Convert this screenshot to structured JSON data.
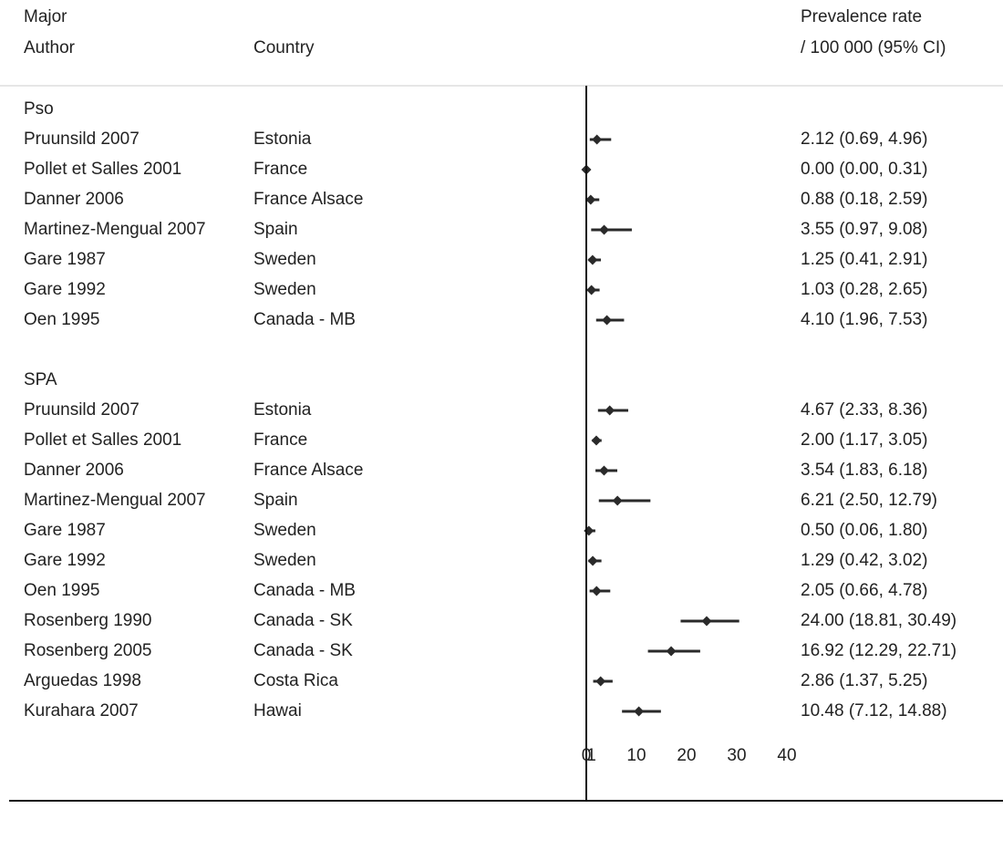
{
  "header": {
    "author_label_1": "Major",
    "author_label_2": "Author",
    "country_label": "Country",
    "rate_label_1": "Prevalence rate",
    "rate_label_2": "/ 100 000 (95% CI)"
  },
  "colors": {
    "text": "#222222",
    "marker": "#2a2a2a",
    "axis": "#111111",
    "divider": "#cccccc"
  },
  "chart_data": {
    "type": "forest",
    "xlabel": "",
    "xlim": [
      0,
      40
    ],
    "x_ticks": [
      "0",
      "1",
      "10",
      "20",
      "30",
      "40"
    ],
    "groups": [
      {
        "name": "Pso",
        "studies": [
          {
            "author": "Pruunsild 2007",
            "country": "Estonia",
            "estimate": 2.12,
            "low": 0.69,
            "high": 4.96,
            "label": "2.12 (0.69, 4.96)"
          },
          {
            "author": "Pollet et Salles 2001",
            "country": "France",
            "estimate": 0.0,
            "low": 0.0,
            "high": 0.31,
            "label": "0.00 (0.00, 0.31)"
          },
          {
            "author": "Danner 2006",
            "country": "France Alsace",
            "estimate": 0.88,
            "low": 0.18,
            "high": 2.59,
            "label": "0.88 (0.18, 2.59)"
          },
          {
            "author": "Martinez-Mengual 2007",
            "country": "Spain",
            "estimate": 3.55,
            "low": 0.97,
            "high": 9.08,
            "label": "3.55 (0.97, 9.08)"
          },
          {
            "author": "Gare 1987",
            "country": "Sweden",
            "estimate": 1.25,
            "low": 0.41,
            "high": 2.91,
            "label": "1.25 (0.41, 2.91)"
          },
          {
            "author": "Gare 1992",
            "country": "Sweden",
            "estimate": 1.03,
            "low": 0.28,
            "high": 2.65,
            "label": "1.03 (0.28, 2.65)"
          },
          {
            "author": "Oen 1995",
            "country": "Canada - MB",
            "estimate": 4.1,
            "low": 1.96,
            "high": 7.53,
            "label": "4.10 (1.96, 7.53)"
          }
        ]
      },
      {
        "name": "SPA",
        "studies": [
          {
            "author": "Pruunsild 2007",
            "country": "Estonia",
            "estimate": 4.67,
            "low": 2.33,
            "high": 8.36,
            "label": "4.67 (2.33, 8.36)"
          },
          {
            "author": "Pollet et Salles 2001",
            "country": "France",
            "estimate": 2.0,
            "low": 1.17,
            "high": 3.05,
            "label": "2.00 (1.17, 3.05)"
          },
          {
            "author": "Danner 2006",
            "country": "France Alsace",
            "estimate": 3.54,
            "low": 1.83,
            "high": 6.18,
            "label": "3.54 (1.83, 6.18)"
          },
          {
            "author": "Martinez-Mengual 2007",
            "country": "Spain",
            "estimate": 6.21,
            "low": 2.5,
            "high": 12.79,
            "label": "6.21 (2.50, 12.79)"
          },
          {
            "author": "Gare 1987",
            "country": "Sweden",
            "estimate": 0.5,
            "low": 0.06,
            "high": 1.8,
            "label": "0.50 (0.06, 1.80)"
          },
          {
            "author": "Gare 1992",
            "country": "Sweden",
            "estimate": 1.29,
            "low": 0.42,
            "high": 3.02,
            "label": "1.29 (0.42, 3.02)"
          },
          {
            "author": "Oen 1995",
            "country": "Canada - MB",
            "estimate": 2.05,
            "low": 0.66,
            "high": 4.78,
            "label": "2.05 (0.66, 4.78)"
          },
          {
            "author": "Rosenberg 1990",
            "country": "Canada - SK",
            "estimate": 24.0,
            "low": 18.81,
            "high": 30.49,
            "label": "24.00 (18.81, 30.49)"
          },
          {
            "author": "Rosenberg 2005",
            "country": "Canada - SK",
            "estimate": 16.92,
            "low": 12.29,
            "high": 22.71,
            "label": "16.92 (12.29, 22.71)"
          },
          {
            "author": "Arguedas 1998",
            "country": "Costa Rica",
            "estimate": 2.86,
            "low": 1.37,
            "high": 5.25,
            "label": "2.86 (1.37, 5.25)"
          },
          {
            "author": "Kurahara 2007",
            "country": "Hawai",
            "estimate": 10.48,
            "low": 7.12,
            "high": 14.88,
            "label": "10.48 (7.12, 14.88)"
          }
        ]
      }
    ]
  }
}
